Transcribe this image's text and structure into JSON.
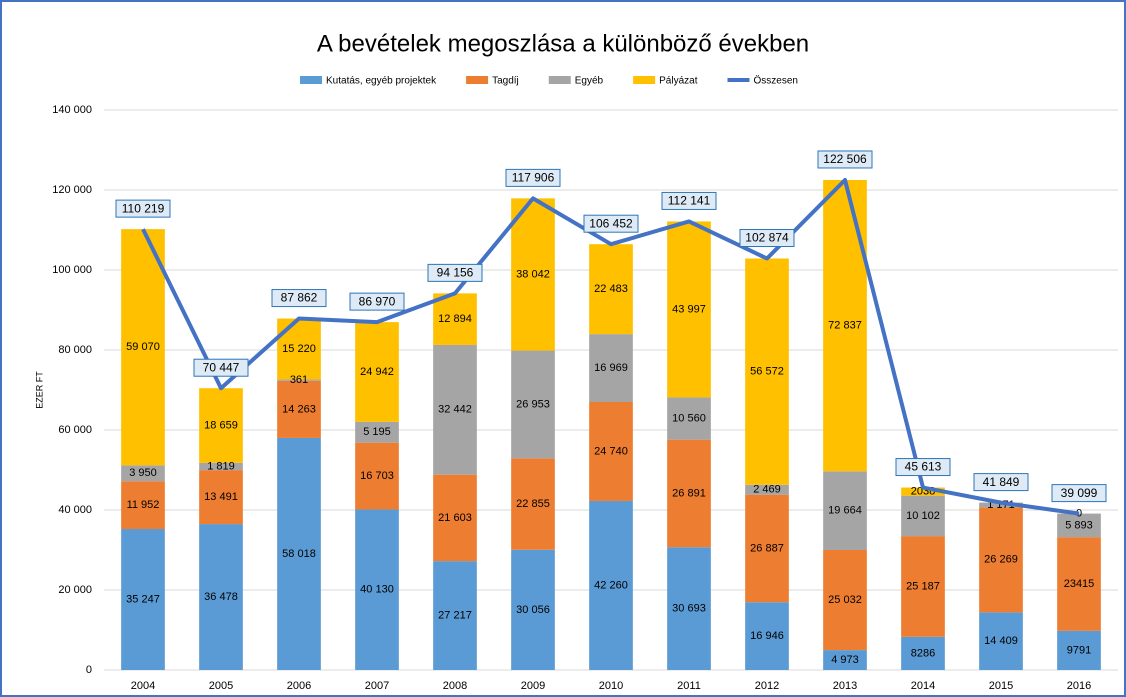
{
  "chart_data": {
    "type": "stacked-bar-line",
    "title": "A bevételek megoszlása a különböző években",
    "y_label": "EZER FT",
    "categories": [
      "2004",
      "2005",
      "2006",
      "2007",
      "2008",
      "2009",
      "2010",
      "2011",
      "2012",
      "2013",
      "2014",
      "2015",
      "2016"
    ],
    "series": [
      {
        "name": "Kutatás, egyéb projektek",
        "color": "#5b9bd5",
        "values": [
          35247,
          36478,
          58018,
          40130,
          27217,
          30056,
          42260,
          30693,
          16946,
          4973,
          8286,
          14409,
          9791
        ],
        "value_labels": [
          "35 247",
          "36 478",
          "58 018",
          "40 130",
          "27 217",
          "30 056",
          "42 260",
          "30 693",
          "16 946",
          "4 973",
          "8286",
          "14 409",
          "9791"
        ]
      },
      {
        "name": "Tagdíj",
        "color": "#ed7d31",
        "values": [
          11952,
          13491,
          14263,
          16703,
          21603,
          22855,
          24740,
          26891,
          26887,
          25032,
          25187,
          26269,
          23415
        ],
        "value_labels": [
          "11 952",
          "13 491",
          "14 263",
          "16 703",
          "21 603",
          "22 855",
          "24 740",
          "26 891",
          "26 887",
          "25 032",
          "25 187",
          "26 269",
          "23415"
        ]
      },
      {
        "name": "Egyéb",
        "color": "#a5a5a5",
        "values": [
          3950,
          1819,
          361,
          5195,
          32442,
          26953,
          16969,
          10560,
          2469,
          19664,
          10102,
          1171,
          5893
        ],
        "value_labels": [
          "3 950",
          "1 819",
          "361",
          "5 195",
          "32 442",
          "26 953",
          "16 969",
          "10 560",
          "2 469",
          "19 664",
          "10 102",
          "1 171",
          "5 893"
        ]
      },
      {
        "name": "Pályázat",
        "color": "#ffc000",
        "values": [
          59070,
          18659,
          15220,
          24942,
          12894,
          38042,
          22483,
          43997,
          56572,
          72837,
          2038,
          null,
          0
        ],
        "value_labels": [
          "59 070",
          "18 659",
          "15 220",
          "24 942",
          "12 894",
          "38 042",
          "22 483",
          "43 997",
          "56 572",
          "72 837",
          "2038",
          null,
          "0"
        ]
      },
      {
        "name": "Összesen",
        "color": "#4472c4",
        "type": "line",
        "values": [
          110219,
          70447,
          87862,
          86970,
          94156,
          117906,
          106452,
          112141,
          102874,
          122506,
          45613,
          41849,
          39099
        ],
        "value_labels": [
          "110 219",
          "70 447",
          "87 862",
          "86 970",
          "94 156",
          "117 906",
          "106 452",
          "112 141",
          "102 874",
          "122 506",
          "45 613",
          "41 849",
          "39 099"
        ]
      }
    ],
    "ylim": [
      0,
      140000
    ],
    "yticks": [
      0,
      {
        "value": 20000,
        "label": "20 000"
      },
      {
        "value": 40000,
        "label": "40 000"
      },
      {
        "value": 60000,
        "label": "60 000"
      },
      {
        "value": 80000,
        "label": "80 000"
      },
      {
        "value": 100000,
        "label": "100 000"
      },
      {
        "value": 120000,
        "label": "120 000"
      },
      {
        "value": 140000,
        "label": "140 000"
      }
    ],
    "grid": true
  }
}
